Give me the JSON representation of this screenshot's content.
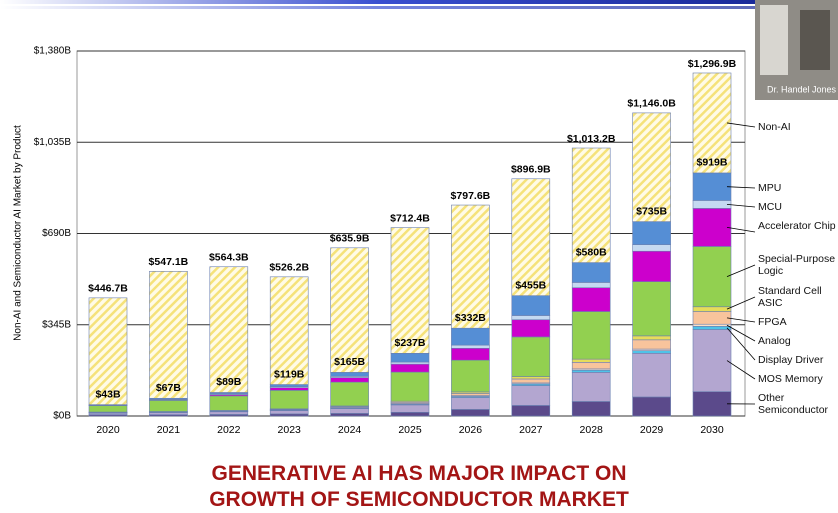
{
  "chart_data": {
    "type": "stacked_bar",
    "title": [
      "GENERATIVE AI HAS MAJOR IMPACT ON",
      "GROWTH OF SEMICONDUCTOR MARKET"
    ],
    "ylabel": "Non-AI and Semiconductor AI Market by Product",
    "categories": [
      "2020",
      "2021",
      "2022",
      "2023",
      "2024",
      "2025",
      "2026",
      "2027",
      "2028",
      "2029",
      "2030"
    ],
    "ylim": [
      0,
      1380
    ],
    "yticks": [
      {
        "value": 0,
        "label": "$0B"
      },
      {
        "value": 345,
        "label": "$345B"
      },
      {
        "value": 690,
        "label": "$690B"
      },
      {
        "value": 1035,
        "label": "$1,035B"
      },
      {
        "value": 1380,
        "label": "$1,380B"
      }
    ],
    "grid": true,
    "series": [
      {
        "name": "Other Semiconductor",
        "color": "#5b4a8b",
        "values": [
          5,
          5,
          6,
          8,
          10,
          14,
          25,
          40,
          55,
          72,
          92
        ]
      },
      {
        "name": "MOS Memory",
        "color": "#b3a6d0",
        "values": [
          6,
          8,
          10,
          12,
          18,
          28,
          45,
          75,
          110,
          165,
          235
        ]
      },
      {
        "name": "Display Driver",
        "color": "#4fc3e8",
        "values": [
          1,
          1,
          1,
          2,
          2,
          3,
          4,
          6,
          8,
          10,
          12
        ]
      },
      {
        "name": "Analog",
        "color": "#fbe0c8",
        "values": [
          1,
          1,
          1,
          1,
          2,
          2,
          3,
          4,
          5,
          6,
          8
        ]
      },
      {
        "name": "FPGA",
        "color": "#f8c49c",
        "values": [
          1,
          1,
          2,
          2,
          3,
          5,
          8,
          15,
          25,
          35,
          48
        ]
      },
      {
        "name": "Standard Cell ASIC",
        "color": "#e6dc5a",
        "values": [
          1,
          1,
          1,
          2,
          3,
          4,
          6,
          9,
          12,
          15,
          18
        ]
      },
      {
        "name": "Special-Purpose Logic",
        "color": "#92d050",
        "values": [
          24,
          42,
          55,
          70,
          90,
          110,
          120,
          150,
          180,
          205,
          228
        ]
      },
      {
        "name": "Accelerator Chip",
        "color": "#cc00cc",
        "values": [
          1,
          2,
          5,
          10,
          17,
          30,
          45,
          65,
          90,
          115,
          144
        ]
      },
      {
        "name": "MCU",
        "color": "#c5d9f1",
        "values": [
          1,
          2,
          3,
          4,
          5,
          8,
          12,
          16,
          20,
          25,
          30
        ]
      },
      {
        "name": "MPU",
        "color": "#558ed5",
        "values": [
          2,
          4,
          5,
          8,
          15,
          33,
          64,
          75,
          75,
          87,
          104
        ]
      },
      {
        "name": "Non-AI",
        "color": "#f5e27a",
        "values": [
          403.7,
          480.1,
          475.3,
          407.2,
          470.9,
          475.4,
          465.6,
          441.9,
          433.2,
          411.0,
          377.9
        ]
      }
    ],
    "totals": {
      "values": [
        446.7,
        547.1,
        564.3,
        526.2,
        635.9,
        712.4,
        797.6,
        896.9,
        1013.2,
        1146.0,
        1296.9
      ],
      "value_labels": [
        "$446.7B",
        "$547.1B",
        "$564.3B",
        "$526.2B",
        "$635.9B",
        "$712.4B",
        "$797.6B",
        "$896.9B",
        "$1,013.2B",
        "$1,146.0B",
        "$1,296.9B"
      ]
    },
    "ai_totals": {
      "values": [
        43,
        67,
        89,
        119,
        165,
        237,
        332,
        455,
        580,
        735,
        919
      ],
      "value_labels": [
        "$43B",
        "$67B",
        "$89B",
        "$119B",
        "$165B",
        "$237B",
        "$332B",
        "$455B",
        "$580B",
        "$735B",
        "$919B"
      ]
    }
  },
  "video": {
    "speaker": "Dr. Handel Jones"
  }
}
